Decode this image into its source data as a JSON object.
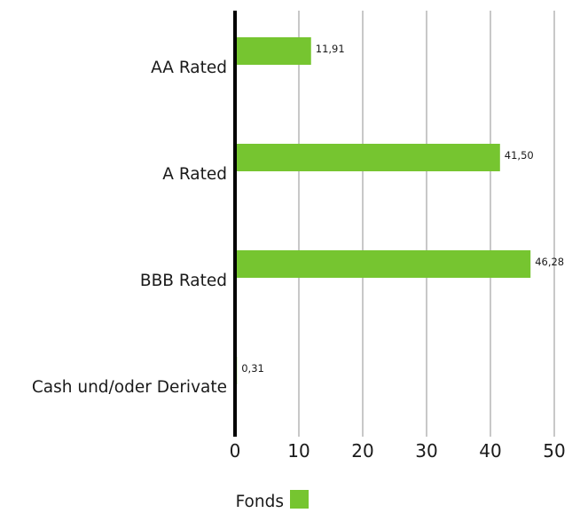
{
  "chart_data": {
    "type": "bar",
    "orientation": "horizontal",
    "categories": [
      "AA Rated",
      "A Rated",
      "BBB Rated",
      "Cash und/oder Derivate"
    ],
    "series": [
      {
        "name": "Fonds",
        "values": [
          11.91,
          41.5,
          46.28,
          0.31
        ],
        "labels": [
          "11,91",
          "41,50",
          "46,28",
          "0,31"
        ],
        "color": "#76c530"
      }
    ],
    "xlim": [
      0,
      50
    ],
    "xticks": [
      0,
      10,
      20,
      30,
      40,
      50
    ],
    "grid": true,
    "legend_position": "bottom-center"
  }
}
